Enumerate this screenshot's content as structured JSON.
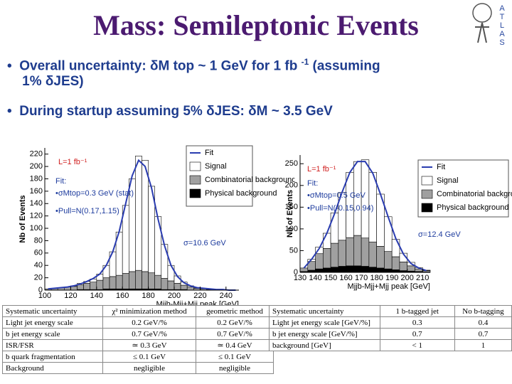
{
  "header": {
    "title": "Mass: Semileptonic Events",
    "logo_letters": [
      "A",
      "T",
      "L",
      "A",
      "S"
    ]
  },
  "bullets": [
    {
      "before": "Overall uncertainty: δM top ~ 1 GeV for 1 fb",
      "sup": "-1",
      "after": "(assuming",
      "line2": "1% δJES)"
    },
    {
      "text": "During startup assuming 5% δJES: δM ~ 3.5 GeV"
    }
  ],
  "chart_data": [
    {
      "type": "histogram",
      "y_label": "Nb of Events",
      "x_label": "Mjjb-Mjj+Mjj peak [GeV]",
      "bins": [
        100,
        105,
        110,
        115,
        120,
        125,
        130,
        135,
        140,
        145,
        150,
        155,
        160,
        165,
        170,
        175,
        180,
        185,
        190,
        195,
        200,
        205,
        210,
        215,
        220,
        225,
        230,
        235,
        240,
        245,
        250
      ],
      "series": [
        {
          "name": "Physical background",
          "color": "#000000",
          "values": [
            0,
            0,
            0,
            0,
            0,
            1,
            1,
            1,
            1,
            2,
            2,
            2,
            2,
            2,
            2,
            2,
            2,
            2,
            1,
            1,
            1,
            1,
            0,
            0,
            0,
            0,
            0,
            0,
            0,
            0
          ]
        },
        {
          "name": "Combinatorial background",
          "color": "#a0a0a0",
          "values": [
            2,
            3,
            4,
            5,
            6,
            8,
            10,
            12,
            15,
            18,
            20,
            22,
            25,
            28,
            30,
            28,
            26,
            22,
            18,
            14,
            10,
            7,
            5,
            3,
            2,
            1,
            1,
            0,
            0,
            0
          ]
        },
        {
          "name": "Signal",
          "color": "#ffffff",
          "values": [
            0,
            0,
            0,
            0,
            1,
            2,
            3,
            5,
            10,
            20,
            40,
            70,
            110,
            150,
            185,
            180,
            140,
            95,
            55,
            25,
            12,
            5,
            2,
            1,
            0,
            0,
            0,
            0,
            0,
            0
          ]
        }
      ],
      "fit": {
        "name": "Fit",
        "color": "#2a3cb0",
        "values": [
          2,
          3,
          4,
          5,
          7,
          10,
          14,
          19,
          26,
          40,
          62,
          95,
          140,
          185,
          210,
          200,
          165,
          115,
          72,
          40,
          22,
          12,
          7,
          4,
          3,
          2,
          1,
          1,
          0,
          0
        ]
      },
      "xlim": [
        100,
        250
      ],
      "xticks": [
        100,
        120,
        140,
        160,
        180,
        200,
        220,
        240
      ],
      "ylim": [
        0,
        230
      ],
      "yticks": [
        0,
        20,
        40,
        60,
        80,
        100,
        120,
        140,
        160,
        180,
        200,
        220
      ],
      "annotations": [
        "L=1 fb⁻¹",
        "Fit:",
        "•σMtop=0.3 GeV (stat)",
        "•Pull=N(0.17,1.15)",
        "σ=10.6 GeV"
      ]
    },
    {
      "type": "histogram",
      "y_label": "Nb of Events",
      "x_label": "Mjjb-Mjj+Mjj peak [GeV]",
      "bins": [
        130,
        135,
        140,
        145,
        150,
        155,
        160,
        165,
        170,
        175,
        180,
        185,
        190,
        195,
        200,
        205,
        210,
        215
      ],
      "series": [
        {
          "name": "Physical background",
          "color": "#000000",
          "values": [
            2,
            5,
            8,
            10,
            12,
            14,
            15,
            15,
            14,
            12,
            10,
            8,
            6,
            4,
            3,
            2,
            1
          ]
        },
        {
          "name": "Combinatorial background",
          "color": "#a0a0a0",
          "values": [
            8,
            20,
            35,
            45,
            55,
            60,
            65,
            70,
            65,
            58,
            50,
            40,
            30,
            20,
            12,
            6,
            3
          ]
        },
        {
          "name": "Signal",
          "color": "#ffffff",
          "values": [
            0,
            5,
            15,
            35,
            70,
            110,
            150,
            170,
            180,
            160,
            120,
            80,
            40,
            20,
            8,
            3,
            1
          ]
        }
      ],
      "fit": {
        "name": "Fit",
        "color": "#2a3cb0",
        "values": [
          10,
          30,
          55,
          90,
          135,
          185,
          230,
          255,
          255,
          228,
          180,
          128,
          78,
          42,
          20,
          10,
          4
        ]
      },
      "xlim": [
        130,
        215
      ],
      "xticks": [
        130,
        140,
        150,
        160,
        170,
        180,
        190,
        200,
        210
      ],
      "ylim": [
        0,
        270
      ],
      "yticks": [
        0,
        50,
        100,
        150,
        200,
        250
      ],
      "annotations": [
        "L=1 fb⁻¹",
        "Fit:",
        "•σMtop=0.5 GeV",
        "•Pull=N(-0.15,0.94)",
        "σ=12.4 GeV"
      ]
    }
  ],
  "tables": [
    {
      "header": [
        "Systematic uncertainty",
        "χ² minimization method",
        "geometric method"
      ],
      "rows": [
        [
          "Light jet energy scale",
          "0.2 GeV/%",
          "0.2 GeV/%"
        ],
        [
          "b jet energy scale",
          "0.7 GeV/%",
          "0.7 GeV/%"
        ],
        [
          "ISR/FSR",
          "≃ 0.3 GeV",
          "≃ 0.4 GeV"
        ],
        [
          "b quark fragmentation",
          "≤ 0.1 GeV",
          "≤ 0.1 GeV"
        ],
        [
          "Background",
          "negligible",
          "negligible"
        ]
      ]
    },
    {
      "header": [
        "Systematic uncertainty",
        "1 b-tagged jet",
        "No b-tagging"
      ],
      "rows": [
        [
          "Light jet energy scale [GeV/%]",
          "0.3",
          "0.4"
        ],
        [
          "b jet energy scale [GeV/%]",
          "0.7",
          "0.7"
        ],
        [
          "background [GeV]",
          "< 1",
          "1"
        ]
      ]
    }
  ]
}
